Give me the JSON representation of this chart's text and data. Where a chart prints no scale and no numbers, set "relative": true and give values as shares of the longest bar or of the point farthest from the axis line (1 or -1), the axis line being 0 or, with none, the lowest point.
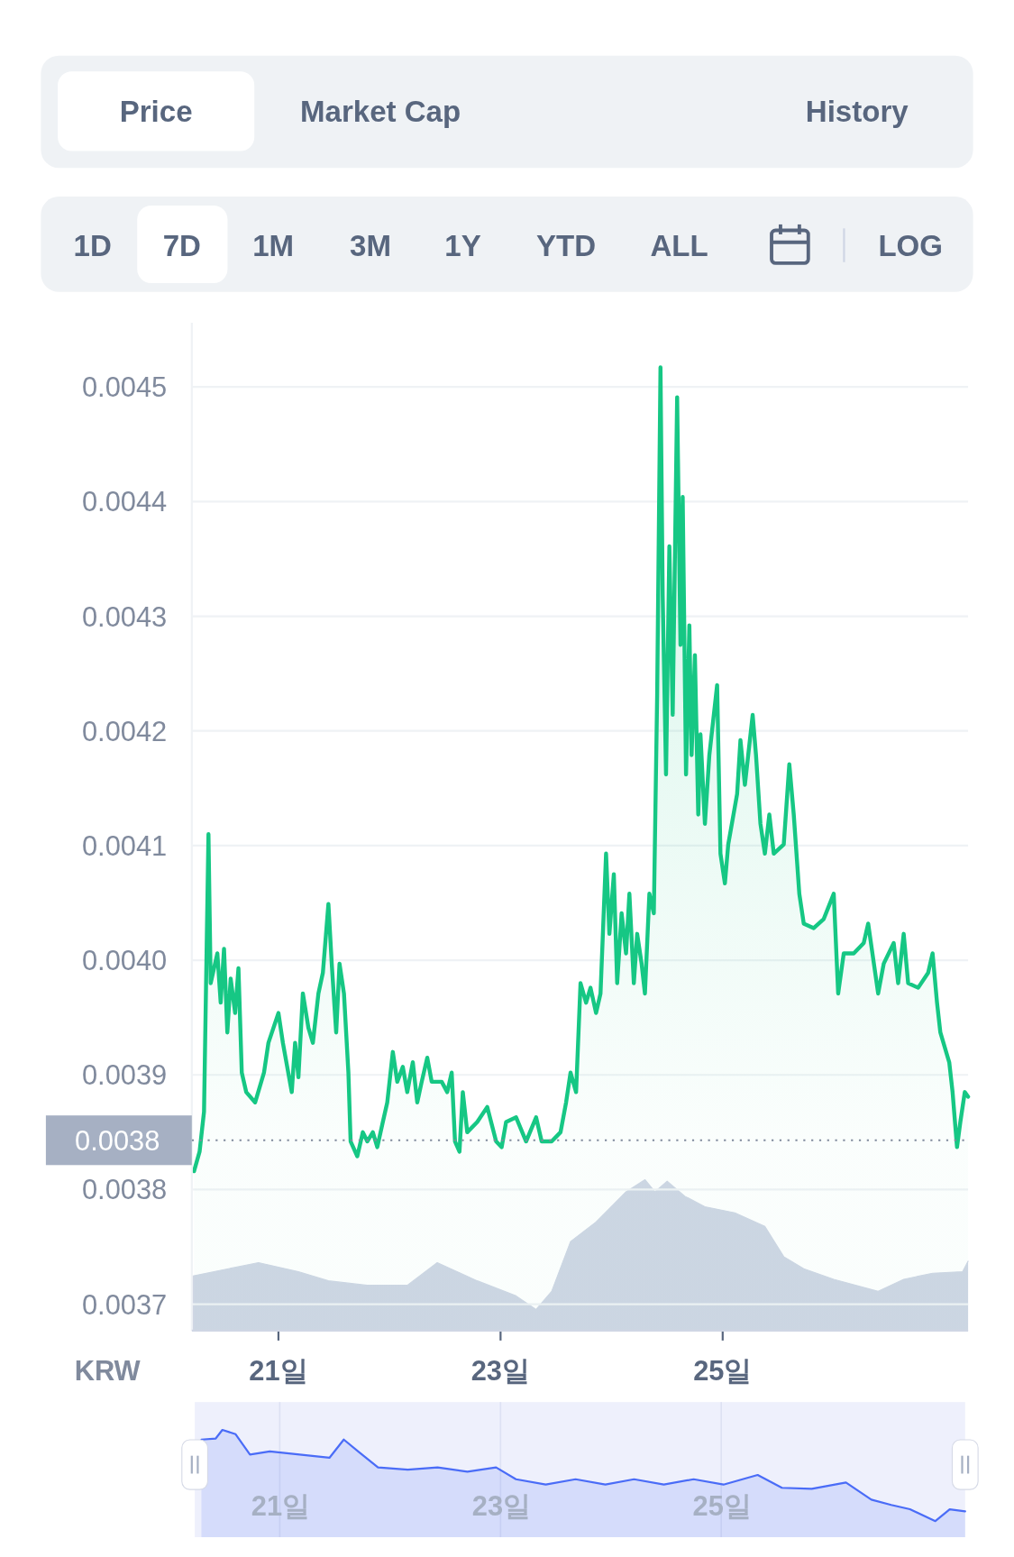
{
  "chart_data": [
    {
      "type": "other",
      "annotations": [
        "Price",
        "Market Cap",
        "History",
        "1D",
        "7D",
        "1M",
        "3M",
        "1Y",
        "YTD",
        "ALL",
        "LOG"
      ]
    },
    {
      "type": "area",
      "ylabel": "KRW",
      "xlim": [
        20.22,
        27.21
      ],
      "ylim": [
        0.003677,
        0.004556
      ],
      "grid": "y",
      "xticks": [
        {
          "value": 21,
          "label": "21일"
        },
        {
          "value": 23,
          "label": "23일"
        },
        {
          "value": 25,
          "label": "25일"
        }
      ],
      "yticks": [
        0.0037,
        0.0038,
        0.0039,
        {
          "value": 0.004,
          "label": "0.0040"
        },
        0.0041,
        0.0042,
        0.0043,
        0.0044,
        0.0045
      ],
      "ref_lines": [
        {
          "axis": "y",
          "value": 0.003843,
          "label": "0.0038",
          "line_style": "dotted"
        }
      ],
      "series": [
        {
          "color": "#16c784",
          "x": [
            20.24,
            20.29,
            20.33,
            20.37,
            20.39,
            20.45,
            20.48,
            20.51,
            20.54,
            20.57,
            20.61,
            20.64,
            20.67,
            20.71,
            20.79,
            20.87,
            20.91,
            21.0,
            21.04,
            21.12,
            21.15,
            21.18,
            21.22,
            21.27,
            21.31,
            21.36,
            21.4,
            21.45,
            21.48,
            21.52,
            21.55,
            21.59,
            21.63,
            21.65,
            21.71,
            21.76,
            21.8,
            21.85,
            21.89,
            21.94,
            21.98,
            22.03,
            22.07,
            22.12,
            22.16,
            22.21,
            22.25,
            22.29,
            22.34,
            22.38,
            22.47,
            22.52,
            22.56,
            22.59,
            22.63,
            22.66,
            22.7,
            22.79,
            22.88,
            22.96,
            23.01,
            23.05,
            23.14,
            23.23,
            23.32,
            23.37,
            23.46,
            23.54,
            23.59,
            23.63,
            23.68,
            23.72,
            23.77,
            23.81,
            23.86,
            23.9,
            23.95,
            23.98,
            24.02,
            24.05,
            24.09,
            24.13,
            24.16,
            24.2,
            24.23,
            24.27,
            24.3,
            24.34,
            24.38,
            24.41,
            24.44,
            24.46,
            24.49,
            24.52,
            24.55,
            24.59,
            24.62,
            24.64,
            24.67,
            24.7,
            24.72,
            24.75,
            24.78,
            24.8,
            24.84,
            24.88,
            24.95,
            24.98,
            25.02,
            25.05,
            25.13,
            25.16,
            25.2,
            25.27,
            25.3,
            25.34,
            25.38,
            25.42,
            25.46,
            25.55,
            25.6,
            25.64,
            25.69,
            25.73,
            25.82,
            25.91,
            26.0,
            26.04,
            26.09,
            26.18,
            26.27,
            26.31,
            26.4,
            26.45,
            26.54,
            26.58,
            26.63,
            26.67,
            26.76,
            26.85,
            26.89,
            26.93,
            26.96,
            27.04,
            27.07,
            27.11,
            27.14,
            27.18,
            27.21
          ],
          "values": [
            0.003816,
            0.003833,
            0.003868,
            0.00411,
            0.00398,
            0.004006,
            0.003963,
            0.00401,
            0.003937,
            0.003984,
            0.003954,
            0.003993,
            0.003902,
            0.003885,
            0.003876,
            0.003902,
            0.003928,
            0.003954,
            0.003928,
            0.003885,
            0.003928,
            0.003898,
            0.003971,
            0.003941,
            0.003928,
            0.003971,
            0.003989,
            0.004049,
            0.003997,
            0.003937,
            0.003997,
            0.003971,
            0.003902,
            0.003842,
            0.003829,
            0.00385,
            0.003842,
            0.00385,
            0.003837,
            0.003859,
            0.003876,
            0.00392,
            0.003894,
            0.003907,
            0.003885,
            0.003911,
            0.003876,
            0.003894,
            0.003915,
            0.003894,
            0.003894,
            0.003885,
            0.003902,
            0.003842,
            0.003833,
            0.003885,
            0.00385,
            0.003859,
            0.003872,
            0.003842,
            0.003837,
            0.003859,
            0.003863,
            0.003842,
            0.003863,
            0.003842,
            0.003842,
            0.00385,
            0.003876,
            0.003902,
            0.003885,
            0.00398,
            0.003963,
            0.003976,
            0.003954,
            0.003971,
            0.004093,
            0.004023,
            0.004075,
            0.00398,
            0.004041,
            0.004006,
            0.004058,
            0.00398,
            0.004023,
            0.003997,
            0.003971,
            0.004058,
            0.004041,
            0.004231,
            0.004517,
            0.004318,
            0.004162,
            0.004361,
            0.004214,
            0.004491,
            0.004275,
            0.004404,
            0.004162,
            0.004292,
            0.004179,
            0.004266,
            0.004127,
            0.004197,
            0.004119,
            0.004179,
            0.00424,
            0.004093,
            0.004067,
            0.004101,
            0.004145,
            0.004192,
            0.004153,
            0.004214,
            0.004179,
            0.004119,
            0.004093,
            0.004127,
            0.004093,
            0.004101,
            0.004171,
            0.004127,
            0.004058,
            0.004032,
            0.004028,
            0.004036,
            0.004058,
            0.003971,
            0.004006,
            0.004006,
            0.004015,
            0.004032,
            0.003971,
            0.003997,
            0.004015,
            0.00398,
            0.004023,
            0.00398,
            0.003976,
            0.003989,
            0.004006,
            0.003963,
            0.003937,
            0.003911,
            0.003885,
            0.003837,
            0.003859,
            0.003885,
            0.003881
          ]
        }
      ]
    },
    {
      "type": "area",
      "relative": true,
      "xlim": [
        20.22,
        27.21
      ],
      "series": [
        {
          "color": "#cfd6e4",
          "x": [
            20.22,
            20.55,
            20.82,
            21.18,
            21.45,
            21.8,
            22.16,
            22.43,
            22.79,
            23.14,
            23.32,
            23.46,
            23.63,
            23.86,
            24.13,
            24.3,
            24.39,
            24.5,
            24.66,
            24.84,
            25.11,
            25.38,
            25.55,
            25.73,
            26.0,
            26.4,
            26.63,
            26.89,
            27.16,
            27.21
          ],
          "values": [
            0.36,
            0.41,
            0.45,
            0.39,
            0.33,
            0.3,
            0.3,
            0.45,
            0.33,
            0.23,
            0.14,
            0.26,
            0.59,
            0.72,
            0.92,
            1,
            0.92,
            0.99,
            0.89,
            0.82,
            0.78,
            0.69,
            0.49,
            0.41,
            0.34,
            0.26,
            0.34,
            0.38,
            0.39,
            0.46
          ]
        }
      ]
    },
    {
      "type": "area",
      "relative": true,
      "grid": "x",
      "xlim": [
        20.23,
        27.21
      ],
      "xticks": [
        {
          "value": 21,
          "label": "21일"
        },
        {
          "value": 23,
          "label": "23일"
        },
        {
          "value": 25,
          "label": "25일"
        }
      ],
      "series": [
        {
          "color": "#4a6cf7",
          "x": [
            20.29,
            20.42,
            20.48,
            20.6,
            20.73,
            20.91,
            21.18,
            21.45,
            21.58,
            21.71,
            21.89,
            22.16,
            22.43,
            22.7,
            22.96,
            23.14,
            23.41,
            23.68,
            23.95,
            24.21,
            24.48,
            24.75,
            25.02,
            25.33,
            25.55,
            25.82,
            26.13,
            26.36,
            26.54,
            26.71,
            26.94,
            27.07,
            27.21
          ],
          "values": [
            0.91,
            0.92,
            1,
            0.96,
            0.77,
            0.8,
            0.77,
            0.74,
            0.91,
            0.8,
            0.65,
            0.63,
            0.65,
            0.61,
            0.65,
            0.54,
            0.49,
            0.54,
            0.49,
            0.54,
            0.49,
            0.54,
            0.49,
            0.58,
            0.46,
            0.45,
            0.51,
            0.35,
            0.3,
            0.26,
            0.15,
            0.26,
            0.24
          ]
        }
      ]
    }
  ]
}
